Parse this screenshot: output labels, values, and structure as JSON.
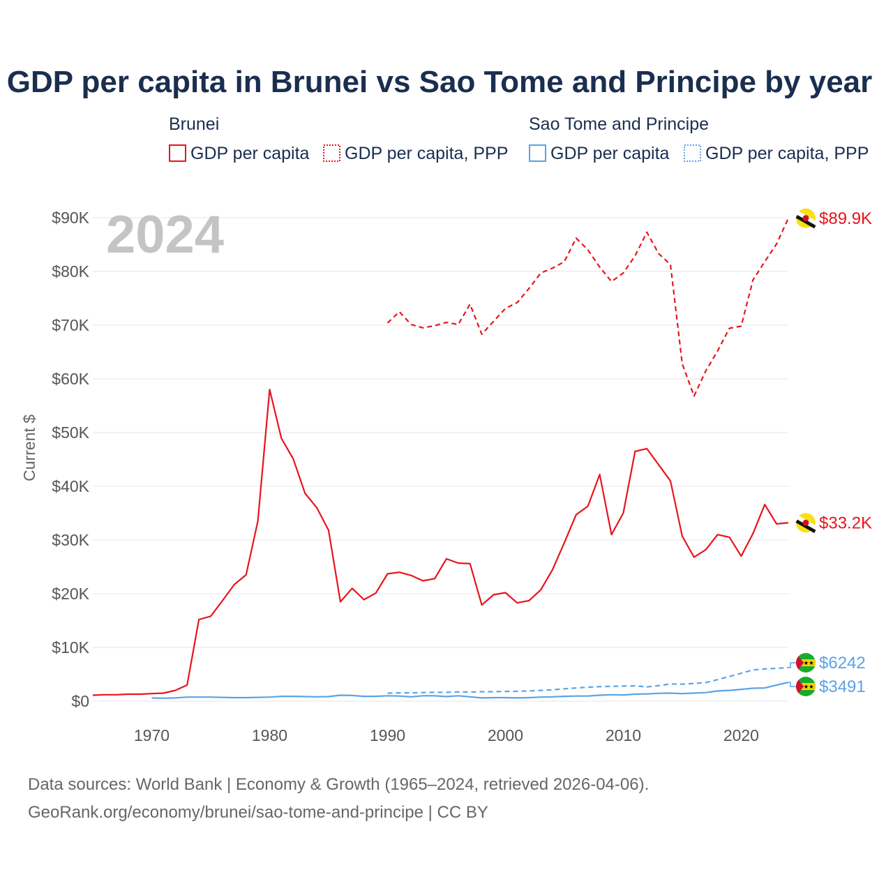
{
  "colors": {
    "brunei": "#e8141c",
    "sao_tome": "#5ba3e6",
    "title": "#1a2e4f",
    "tick": "#555555",
    "grid": "#e6e6e6",
    "watermark": "#c4c4c4"
  },
  "chart_data": {
    "type": "line",
    "title": "GDP per capita in Brunei vs Sao Tome and Principe by year",
    "ylabel": "Current $",
    "xlabel": "",
    "xlim": [
      1965,
      2024
    ],
    "ylim": [
      0,
      90000
    ],
    "year_watermark": "2024",
    "x_ticks": [
      1970,
      1980,
      1990,
      2000,
      2010,
      2020
    ],
    "x_tick_labels": [
      "1970",
      "1980",
      "1990",
      "2000",
      "2010",
      "2020"
    ],
    "y_ticks": [
      0,
      10000,
      20000,
      30000,
      40000,
      50000,
      60000,
      70000,
      80000,
      90000
    ],
    "y_tick_labels": [
      "$0",
      "$10K",
      "$20K",
      "$30K",
      "$40K",
      "$50K",
      "$60K",
      "$70K",
      "$80K",
      "$90K"
    ],
    "legend": {
      "groups": [
        {
          "name": "Brunei",
          "items": [
            {
              "label": "GDP per capita",
              "style": "solid",
              "color_key": "brunei"
            },
            {
              "label": "GDP per capita, PPP",
              "style": "dotted",
              "color_key": "brunei"
            }
          ]
        },
        {
          "name": "Sao Tome and Principe",
          "items": [
            {
              "label": "GDP per capita",
              "style": "solid",
              "color_key": "sao_tome"
            },
            {
              "label": "GDP per capita, PPP",
              "style": "dotted",
              "color_key": "sao_tome"
            }
          ]
        }
      ]
    },
    "series": [
      {
        "name": "Brunei GDP per capita",
        "country": "Brunei",
        "style": "solid",
        "color_key": "brunei",
        "end_label": "$33.2K",
        "x": [
          1965,
          1966,
          1967,
          1968,
          1969,
          1970,
          1971,
          1972,
          1973,
          1974,
          1975,
          1976,
          1977,
          1978,
          1979,
          1980,
          1981,
          1982,
          1983,
          1984,
          1985,
          1986,
          1987,
          1988,
          1989,
          1990,
          1991,
          1992,
          1993,
          1994,
          1995,
          1996,
          1997,
          1998,
          1999,
          2000,
          2001,
          2002,
          2003,
          2004,
          2005,
          2006,
          2007,
          2008,
          2009,
          2010,
          2011,
          2012,
          2013,
          2014,
          2015,
          2016,
          2017,
          2018,
          2019,
          2020,
          2021,
          2022,
          2023,
          2024
        ],
        "values": [
          1100,
          1200,
          1200,
          1300,
          1300,
          1400,
          1500,
          2000,
          3000,
          15200,
          15800,
          18700,
          21700,
          23500,
          33500,
          58000,
          48900,
          45100,
          38700,
          36000,
          31800,
          18500,
          21000,
          18900,
          20100,
          23700,
          24000,
          23400,
          22400,
          22800,
          26500,
          25700,
          25600,
          17900,
          19800,
          20200,
          18300,
          18700,
          20700,
          24500,
          29500,
          34700,
          36300,
          42200,
          31000,
          35000,
          46500,
          47000,
          44000,
          41000,
          30700,
          26800,
          28200,
          31000,
          30500,
          27000,
          31200,
          36600,
          33000,
          33200
        ]
      },
      {
        "name": "Brunei GDP per capita, PPP",
        "country": "Brunei",
        "style": "dashed",
        "color_key": "brunei",
        "end_label": "$89.9K",
        "x": [
          1990,
          1991,
          1992,
          1993,
          1994,
          1995,
          1996,
          1997,
          1998,
          1999,
          2000,
          2001,
          2002,
          2003,
          2004,
          2005,
          2006,
          2007,
          2008,
          2009,
          2010,
          2011,
          2012,
          2013,
          2014,
          2015,
          2016,
          2017,
          2018,
          2019,
          2020,
          2021,
          2022,
          2023,
          2024
        ],
        "values": [
          70400,
          72500,
          70100,
          69500,
          69900,
          70500,
          70100,
          73900,
          68300,
          70700,
          73100,
          74200,
          76800,
          79700,
          80600,
          81800,
          86200,
          84000,
          80800,
          78100,
          79700,
          82900,
          87300,
          83300,
          81300,
          62800,
          56800,
          61500,
          65200,
          69400,
          69800,
          78400,
          81800,
          85100,
          89900
        ]
      },
      {
        "name": "Sao Tome and Principe GDP per capita",
        "country": "Sao Tome and Principe",
        "style": "solid",
        "color_key": "sao_tome",
        "end_label": "$3491",
        "x": [
          1970,
          1971,
          1972,
          1973,
          1974,
          1975,
          1976,
          1977,
          1978,
          1979,
          1980,
          1981,
          1982,
          1983,
          1984,
          1985,
          1986,
          1987,
          1988,
          1989,
          1990,
          1991,
          1992,
          1993,
          1994,
          1995,
          1996,
          1997,
          1998,
          1999,
          2000,
          2001,
          2002,
          2003,
          2004,
          2005,
          2006,
          2007,
          2008,
          2009,
          2010,
          2011,
          2012,
          2013,
          2014,
          2015,
          2016,
          2017,
          2018,
          2019,
          2020,
          2021,
          2022,
          2023,
          2024
        ],
        "values": [
          600,
          550,
          600,
          750,
          750,
          750,
          700,
          650,
          650,
          700,
          750,
          900,
          900,
          850,
          800,
          850,
          1100,
          1050,
          900,
          900,
          1000,
          950,
          800,
          1000,
          1000,
          850,
          1000,
          800,
          600,
          650,
          650,
          600,
          650,
          750,
          800,
          900,
          950,
          950,
          1100,
          1200,
          1150,
          1300,
          1350,
          1450,
          1500,
          1400,
          1500,
          1600,
          1900,
          2000,
          2200,
          2400,
          2450,
          3000,
          3491
        ]
      },
      {
        "name": "Sao Tome and Principe GDP per capita, PPP",
        "country": "Sao Tome and Principe",
        "style": "dashed",
        "color_key": "sao_tome",
        "end_label": "$6242",
        "x": [
          1990,
          1991,
          1992,
          1993,
          1994,
          1995,
          1996,
          1997,
          1998,
          1999,
          2000,
          2001,
          2002,
          2003,
          2004,
          2005,
          2006,
          2007,
          2008,
          2009,
          2010,
          2011,
          2012,
          2013,
          2014,
          2015,
          2016,
          2017,
          2018,
          2019,
          2020,
          2021,
          2022,
          2023,
          2024
        ],
        "values": [
          1500,
          1550,
          1550,
          1600,
          1650,
          1650,
          1700,
          1700,
          1750,
          1750,
          1800,
          1850,
          1900,
          2000,
          2100,
          2300,
          2450,
          2600,
          2700,
          2750,
          2800,
          2850,
          2650,
          2900,
          3200,
          3150,
          3300,
          3450,
          4000,
          4600,
          5200,
          5800,
          6000,
          6100,
          6242
        ]
      }
    ]
  },
  "footer": {
    "source_line1": "Data sources: World Bank | Economy & Growth (1965–2024, retrieved 2026-04-06).",
    "source_line2": "GeoRank.org/economy/brunei/sao-tome-and-principe | CC BY"
  }
}
